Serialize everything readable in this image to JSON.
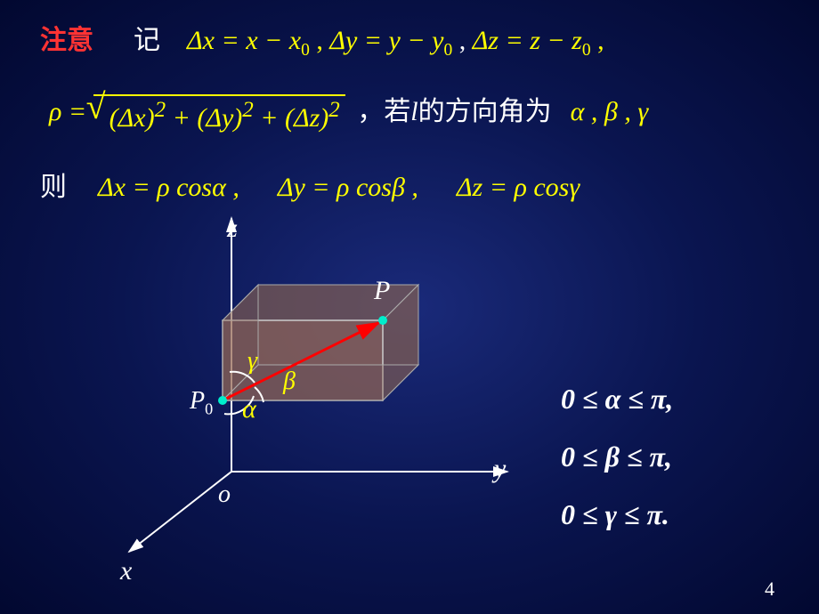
{
  "line1": {
    "attention": "注意",
    "note": "记",
    "eq1": "Δ<i>x</i> = <i>x</i> − <i>x</i>",
    "eq1sub": "0",
    "comma1": " , ",
    "eq2": "Δ<i>y</i> = <i>y</i> − <i>y</i>",
    "eq2sub": "0",
    "comma2": " , ",
    "eq3": "Δ<i>z</i> = <i>z</i> − <i>z</i>",
    "eq3sub": "0",
    "comma3": " ,"
  },
  "line2": {
    "rho": "<i>ρ</i> = ",
    "sqrt_body": "(Δ<i>x</i>)<sup>2</sup> + (Δ<i>y</i>)<sup>2</sup> + (Δ<i>z</i>)<sup>2</sup>",
    "after": "，若<i>l</i>的方向角为",
    "angles": "<i>α</i> , <i>β</i> , <i>γ</i>"
  },
  "line3": {
    "then": "则",
    "eq1": "Δ<i>x</i> = <i>ρ</i> cos<i>α</i> ,",
    "eq2": "Δ<i>y</i> = <i>ρ</i> cos<i>β</i> ,",
    "eq3": "Δ<i>z</i> = <i>ρ</i> cos<i>γ</i>"
  },
  "axes": {
    "z": "z",
    "y": "y",
    "x": "x",
    "o": "o"
  },
  "points": {
    "P": "P",
    "P0": "P",
    "P0sub": "0"
  },
  "greek": {
    "alpha": "α",
    "beta": "β",
    "gamma": "γ"
  },
  "ineq": {
    "l1": "0 ≤ <i>α</i> ≤ <i>π</i>,",
    "l2": "0 ≤ <i>β</i> ≤ <i>π</i>,",
    "l3": "0 ≤ <i>γ</i> ≤ <i>π</i>."
  },
  "pageNum": "4",
  "colors": {
    "red": "#ff3333",
    "yellow": "#ffff00",
    "white": "#ffffff",
    "boxFill": "rgba(140,100,80,0.5)",
    "boxStroke": "#999999",
    "arrowRed": "#ff0000",
    "dotCyan": "#00eecc"
  }
}
